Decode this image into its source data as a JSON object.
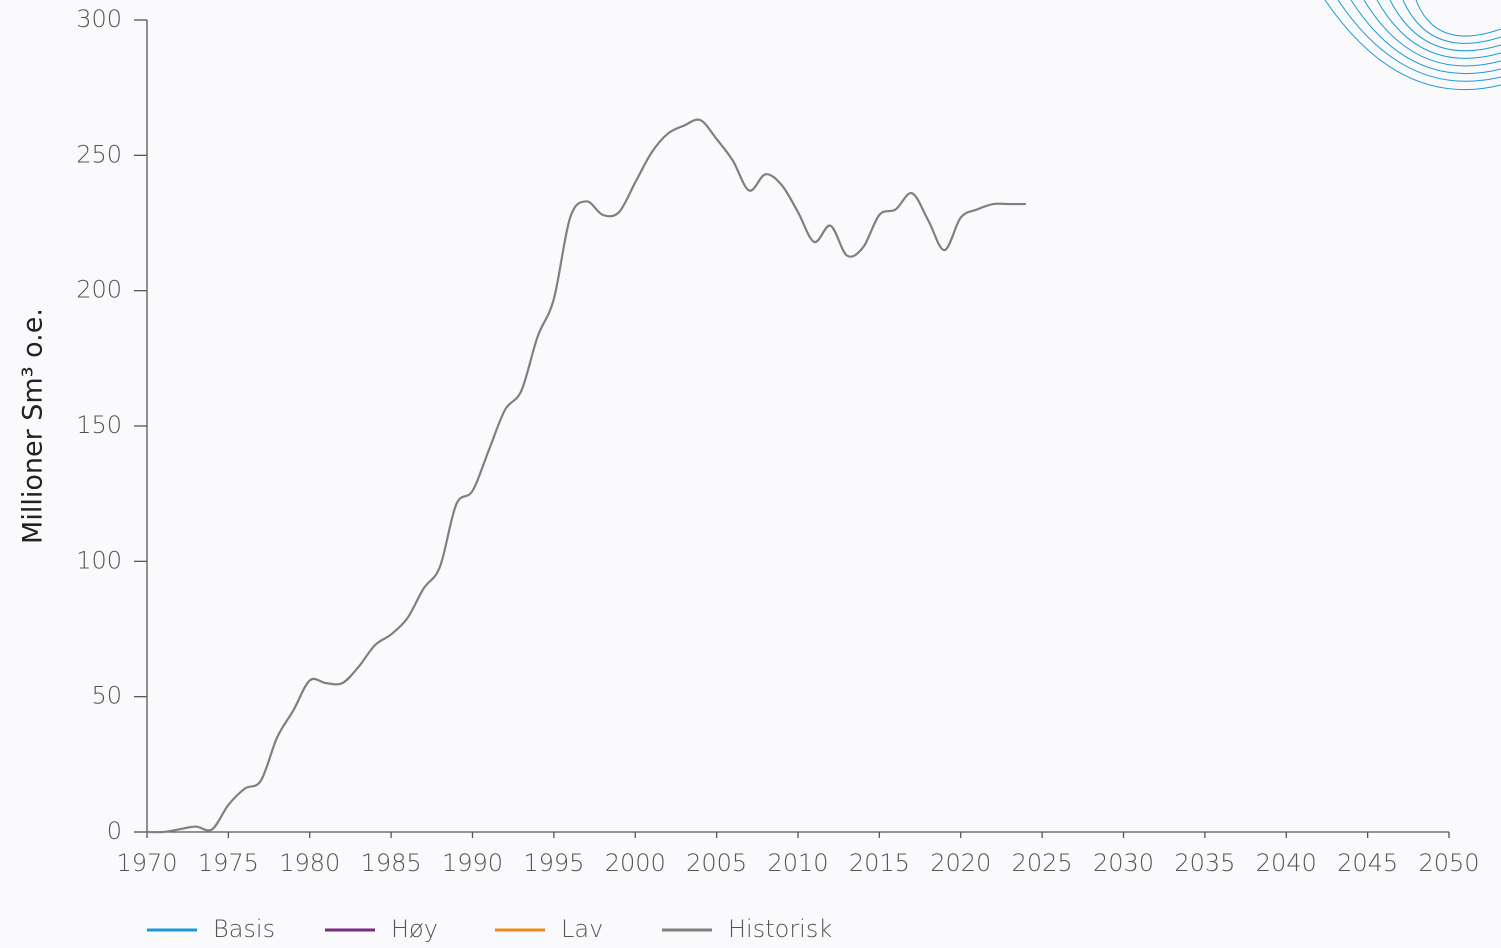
{
  "chart_data": {
    "type": "line",
    "y_label": "Millioner Sm³ o.e.",
    "x": [
      1970,
      1971,
      1972,
      1973,
      1974,
      1975,
      1976,
      1977,
      1978,
      1979,
      1980,
      1981,
      1982,
      1983,
      1984,
      1985,
      1986,
      1987,
      1988,
      1989,
      1990,
      1991,
      1992,
      1993,
      1994,
      1995,
      1996,
      1997,
      1998,
      1999,
      2000,
      2001,
      2002,
      2003,
      2004,
      2005,
      2006,
      2007,
      2008,
      2009,
      2010,
      2011,
      2012,
      2013,
      2014,
      2015,
      2016,
      2017,
      2018,
      2019,
      2020,
      2021,
      2022,
      2023,
      2024
    ],
    "series": [
      {
        "name": "Basis",
        "color": "#1a9ad6",
        "values": [
          null,
          null,
          null,
          null,
          null,
          null,
          null,
          null,
          null,
          null,
          null,
          null,
          null,
          null,
          null,
          null,
          null,
          null,
          null,
          null,
          null,
          null,
          null,
          null,
          null,
          null,
          null,
          null,
          null,
          null,
          null,
          null,
          null,
          null,
          null,
          null,
          null,
          null,
          null,
          null,
          null,
          null,
          null,
          null,
          null,
          null,
          null,
          null,
          null,
          null,
          null,
          null,
          null,
          null,
          null
        ]
      },
      {
        "name": "Høy",
        "color": "#7b2a7f",
        "values": [
          null,
          null,
          null,
          null,
          null,
          null,
          null,
          null,
          null,
          null,
          null,
          null,
          null,
          null,
          null,
          null,
          null,
          null,
          null,
          null,
          null,
          null,
          null,
          null,
          null,
          null,
          null,
          null,
          null,
          null,
          null,
          null,
          null,
          null,
          null,
          null,
          null,
          null,
          null,
          null,
          null,
          null,
          null,
          null,
          null,
          null,
          null,
          null,
          null,
          null,
          null,
          null,
          null,
          null,
          null
        ]
      },
      {
        "name": "Lav",
        "color": "#ef8a1c",
        "values": [
          null,
          null,
          null,
          null,
          null,
          null,
          null,
          null,
          null,
          null,
          null,
          null,
          null,
          null,
          null,
          null,
          null,
          null,
          null,
          null,
          null,
          null,
          null,
          null,
          null,
          null,
          null,
          null,
          null,
          null,
          null,
          null,
          null,
          null,
          null,
          null,
          null,
          null,
          null,
          null,
          null,
          null,
          null,
          null,
          null,
          null,
          null,
          null,
          null,
          null,
          null,
          null,
          null,
          null,
          null
        ]
      },
      {
        "name": "Historisk",
        "color": "#808080",
        "values": [
          0,
          0,
          1,
          2,
          1,
          10,
          16,
          19,
          35,
          45,
          56,
          55,
          55,
          61,
          69,
          73,
          79,
          90,
          98,
          121,
          126,
          141,
          156,
          163,
          183,
          197,
          227,
          233,
          228,
          229,
          240,
          251,
          258,
          261,
          263,
          256,
          248,
          237,
          243,
          239,
          229,
          218,
          224,
          213,
          216,
          228,
          230,
          236,
          226,
          215,
          227,
          230,
          232,
          232,
          232
        ]
      }
    ],
    "xlim": [
      1970,
      2050
    ],
    "xticks": [
      1970,
      1975,
      1980,
      1985,
      1990,
      1995,
      2000,
      2005,
      2010,
      2015,
      2020,
      2025,
      2030,
      2035,
      2040,
      2045,
      2050
    ],
    "ylim": [
      0,
      300
    ],
    "yticks": [
      0,
      50,
      100,
      150,
      200,
      250,
      300
    ],
    "grid": false
  }
}
